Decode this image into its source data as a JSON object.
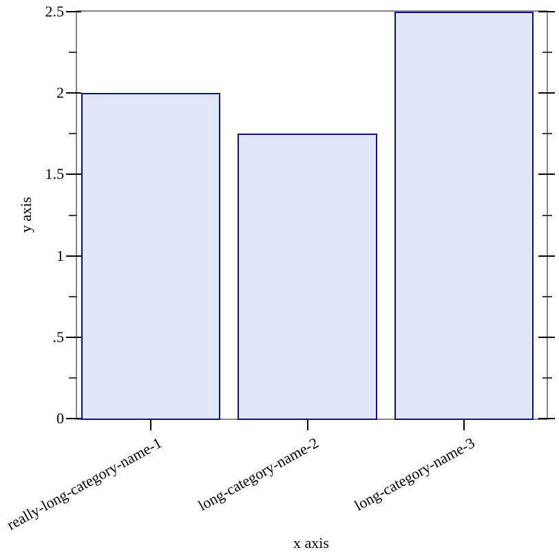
{
  "chart_data": {
    "type": "bar",
    "title": "",
    "xlabel": "x axis",
    "ylabel": "y axis",
    "categories": [
      "really-long-category-name-1",
      "long-category-name-2",
      "long-category-name-3"
    ],
    "values": [
      2,
      1.75,
      2.5
    ],
    "ylim": [
      0,
      2.5
    ],
    "y_major_ticks": [
      0,
      0.5,
      1,
      1.5,
      2,
      2.5
    ],
    "y_major_tick_labels": [
      "0",
      ".5",
      "1",
      "1.5",
      "2",
      "2.5"
    ],
    "y_minor_ticks": [
      0.25,
      0.75,
      1.25,
      1.75,
      2.25
    ],
    "grid": false,
    "legend": "none",
    "x_tick_label_rotation_deg": -29,
    "colors": {
      "bar_fill": "#e2e6fa",
      "bar_border": "#10108e",
      "axis_frame": "#878787",
      "tick_major": "#000000",
      "tick_minor": "#3d3d3d",
      "text": "#000000",
      "background": "#ffffff"
    }
  }
}
